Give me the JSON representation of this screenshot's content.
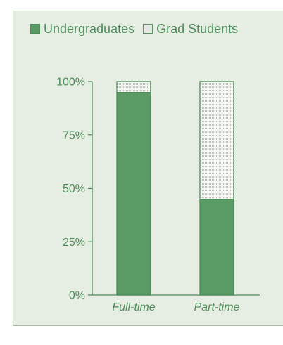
{
  "chart_data": {
    "type": "bar",
    "stacked": true,
    "categories": [
      "Full-time",
      "Part-time"
    ],
    "series": [
      {
        "name": "Undergraduates",
        "values": [
          95,
          45
        ]
      },
      {
        "name": "Grad Students",
        "values": [
          5,
          55
        ]
      }
    ],
    "ylim": [
      0,
      100
    ],
    "yticks": [
      0,
      25,
      50,
      75,
      100
    ],
    "ytick_labels": [
      "0%",
      "25%",
      "50%",
      "75%",
      "100%"
    ],
    "legend_position": "top",
    "grid": false,
    "colors": {
      "panel_background": "#e6eee3",
      "undergraduates_fill": "#5a9a64",
      "grad_students_fill": "#f5f7f2",
      "axis": "#4e8c59",
      "text": "#4e8c59"
    }
  }
}
